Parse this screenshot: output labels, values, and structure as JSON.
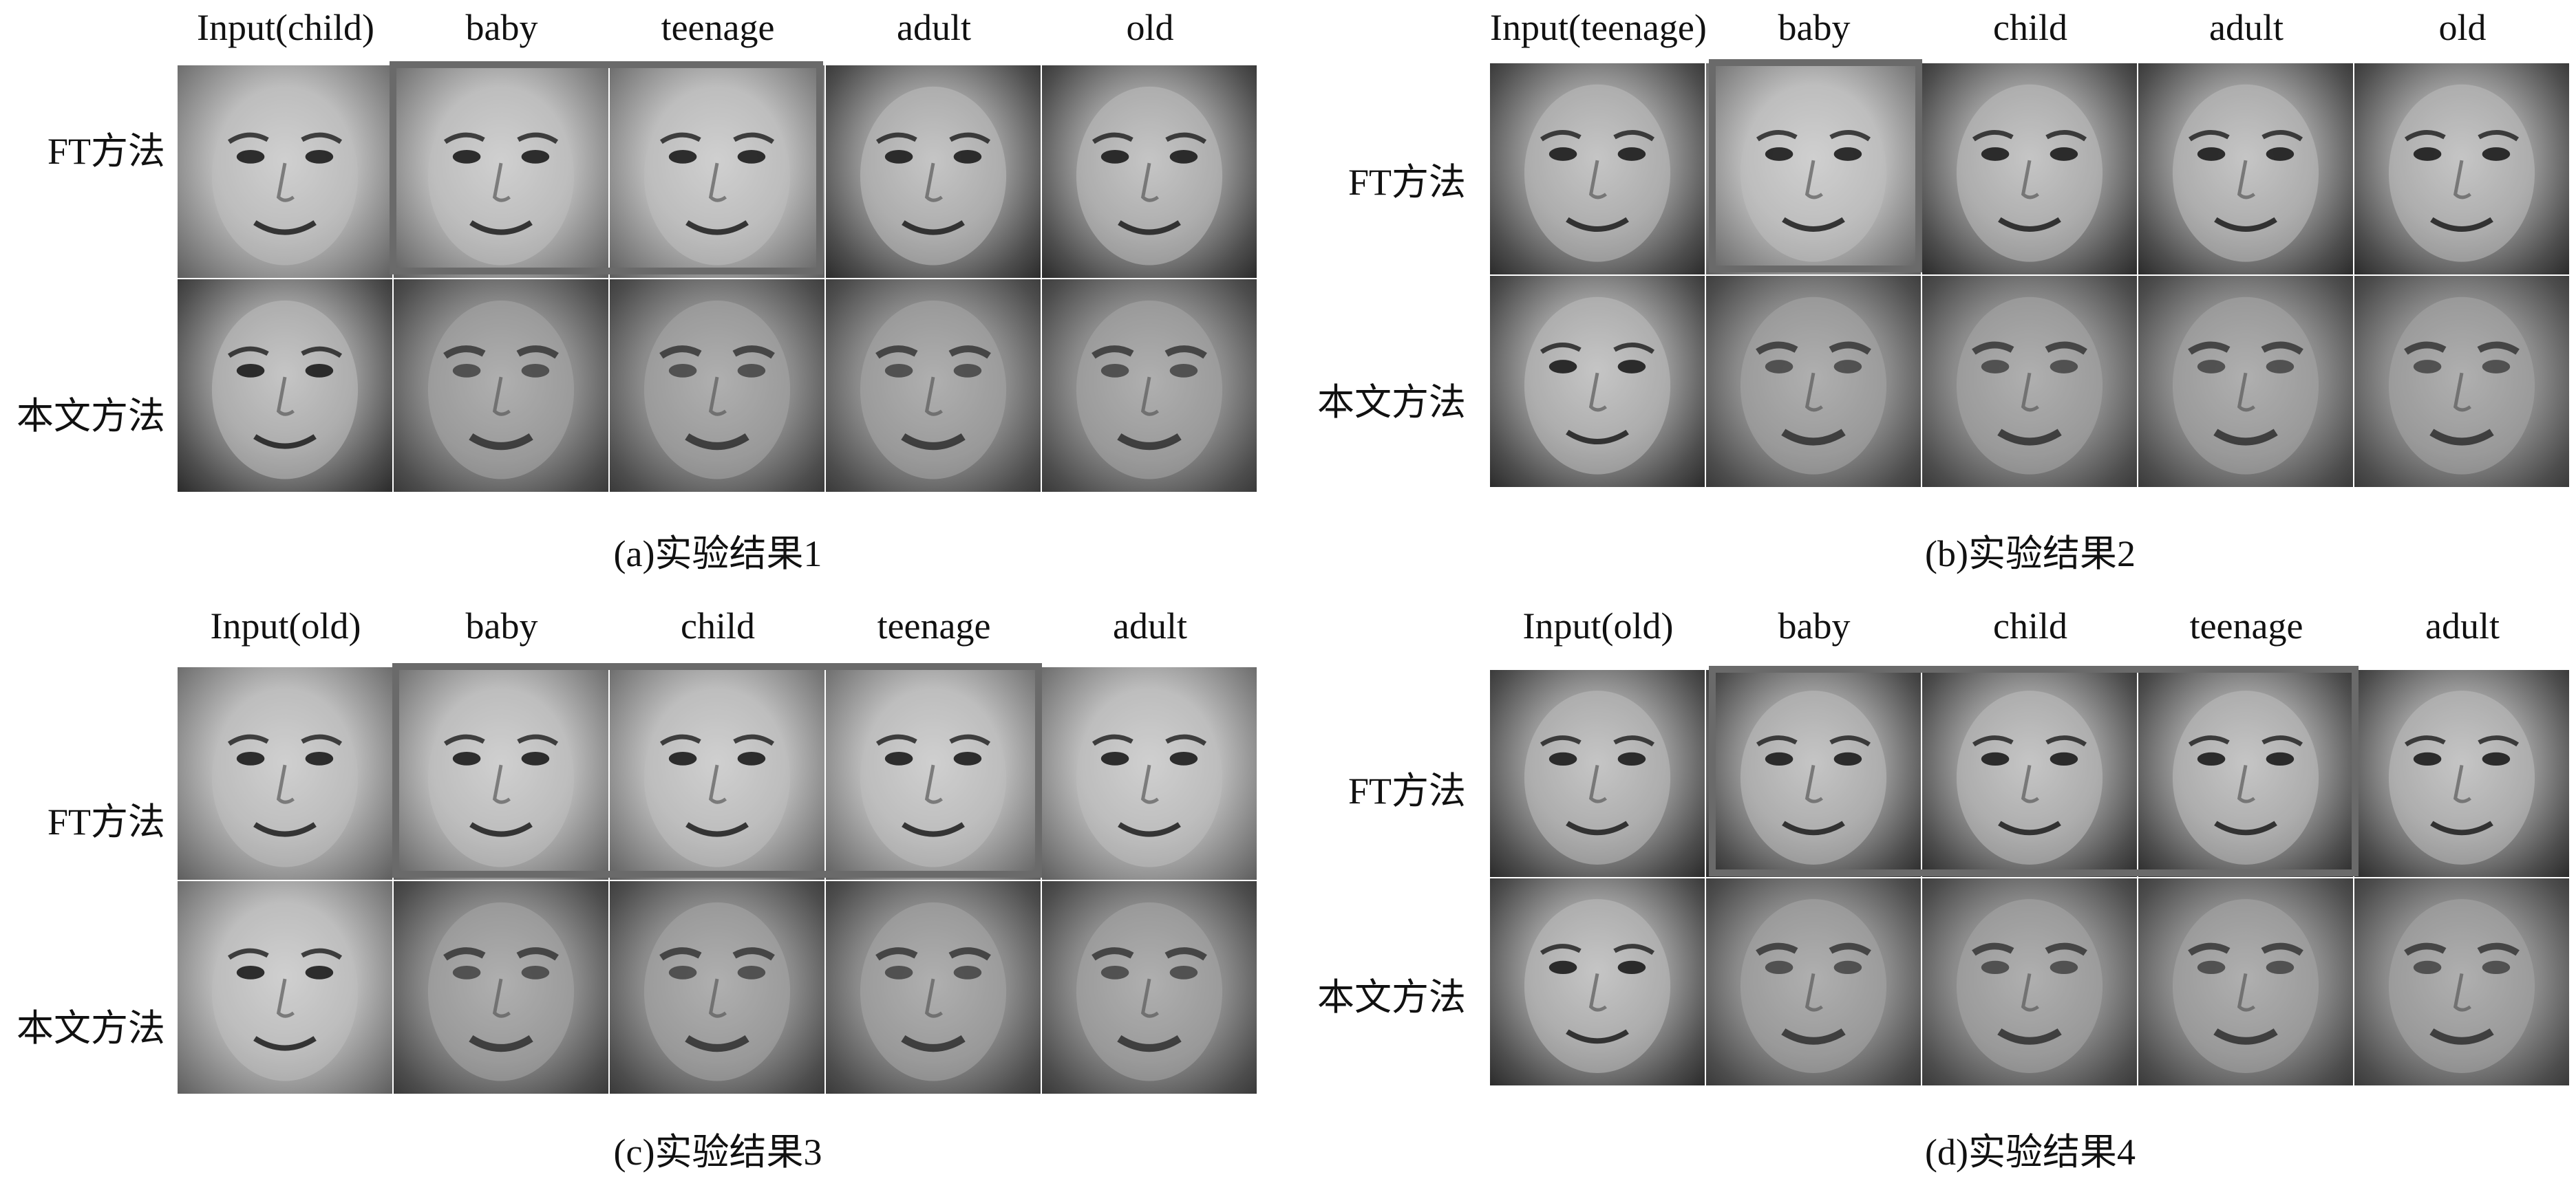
{
  "panels": {
    "a": {
      "headers": [
        "Input(child)",
        "baby",
        "teenage",
        "adult",
        "old"
      ],
      "rows": [
        "FT方法",
        "本文方法"
      ],
      "caption": "(a)实验结果1"
    },
    "b": {
      "headers": [
        "Input(teenage)",
        "baby",
        "child",
        "adult",
        "old"
      ],
      "rows": [
        "FT方法",
        "本文方法"
      ],
      "caption": "(b)实验结果2"
    },
    "c": {
      "headers": [
        "Input(old)",
        "baby",
        "child",
        "teenage",
        "adult"
      ],
      "rows": [
        "FT方法",
        "本文方法"
      ],
      "caption": "(c)实验结果3"
    },
    "d": {
      "headers": [
        "Input(old)",
        "baby",
        "child",
        "teenage",
        "adult"
      ],
      "rows": [
        "FT方法",
        "本文方法"
      ],
      "caption": "(d)实验结果4"
    }
  }
}
